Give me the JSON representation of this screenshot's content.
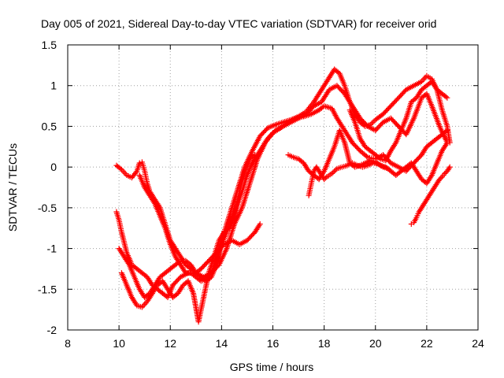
{
  "chart_data": {
    "type": "scatter",
    "title": "Day 005 of 2021, Sidereal Day-to-day VTEC variation (SDTVAR) for receiver orid",
    "xlabel": "GPS time / hours",
    "ylabel": "SDTVAR / TECUs",
    "xlim": [
      8,
      24
    ],
    "ylim": [
      -2,
      1.5
    ],
    "xticks": [
      "8",
      "10",
      "12",
      "14",
      "16",
      "18",
      "20",
      "22",
      "24"
    ],
    "yticks": [
      "1.5",
      "1",
      "0.5",
      "0",
      "-0.5",
      "-1",
      "-1.5",
      "-2"
    ],
    "grid": true,
    "marker": "plus",
    "color": "#ff0000",
    "series": [
      {
        "x": [
          9.9,
          10.1,
          10.3,
          10.5,
          10.7,
          10.8,
          10.9,
          11.0,
          11.1,
          11.2,
          11.4,
          11.6,
          11.8,
          12.0,
          12.2,
          12.4,
          12.6,
          12.8,
          13.0,
          13.2,
          13.4,
          13.6,
          13.8,
          14.0,
          14.3,
          14.6,
          14.9,
          15.2,
          15.5,
          15.8,
          16.1,
          16.4,
          16.7,
          17.0,
          17.3,
          17.6,
          17.9,
          18.2,
          18.4,
          18.6,
          18.8,
          19.0,
          19.2,
          19.4,
          19.6,
          19.8,
          20.0,
          20.3,
          20.6,
          20.9,
          21.2,
          21.5,
          21.8,
          22.0,
          22.2,
          22.4,
          22.6,
          22.8
        ],
        "y": [
          0.02,
          -0.03,
          -0.1,
          -0.13,
          -0.05,
          0.05,
          0.06,
          -0.05,
          -0.2,
          -0.3,
          -0.4,
          -0.5,
          -0.7,
          -0.9,
          -1.0,
          -1.1,
          -1.2,
          -1.25,
          -1.3,
          -1.35,
          -1.4,
          -1.35,
          -1.2,
          -0.9,
          -0.6,
          -0.3,
          0.0,
          0.2,
          0.38,
          0.48,
          0.52,
          0.55,
          0.58,
          0.62,
          0.68,
          0.8,
          0.95,
          1.1,
          1.2,
          1.15,
          1.0,
          0.8,
          0.65,
          0.55,
          0.5,
          0.52,
          0.58,
          0.65,
          0.75,
          0.85,
          0.95,
          1.0,
          1.05,
          1.12,
          1.08,
          0.95,
          0.9,
          0.85
        ]
      },
      {
        "x": [
          9.9,
          10.0,
          10.1,
          10.3,
          10.5,
          10.7,
          10.9,
          11.1,
          11.3,
          11.5,
          11.7,
          11.9,
          12.1,
          12.4,
          12.7,
          13.0,
          13.3,
          13.6,
          13.9,
          14.2,
          14.5,
          14.8,
          15.1,
          15.4,
          15.7,
          16.0,
          16.3,
          16.6,
          16.9,
          17.2,
          17.5,
          17.8,
          18.0,
          18.3,
          18.5,
          18.8,
          19.1,
          19.4,
          19.7,
          20.0,
          20.3,
          20.6,
          20.9,
          21.2,
          21.5,
          21.8,
          22.0,
          22.2,
          22.4,
          22.6,
          22.8
        ],
        "y": [
          -0.55,
          -0.65,
          -0.8,
          -1.05,
          -1.2,
          -1.25,
          -1.3,
          -1.35,
          -1.45,
          -1.5,
          -1.55,
          -1.6,
          -1.45,
          -1.35,
          -1.3,
          -1.3,
          -1.35,
          -1.3,
          -1.2,
          -1.0,
          -0.7,
          -0.5,
          -0.2,
          0.1,
          0.3,
          0.42,
          0.48,
          0.55,
          0.6,
          0.62,
          0.65,
          0.7,
          0.75,
          0.72,
          0.6,
          0.45,
          0.3,
          0.2,
          0.12,
          0.1,
          0.15,
          0.05,
          0.0,
          -0.05,
          0.05,
          0.15,
          0.25,
          0.3,
          0.35,
          0.4,
          0.45
        ]
      },
      {
        "x": [
          10.0,
          10.2,
          10.4,
          10.6,
          10.8,
          11.0,
          11.2,
          11.4,
          11.6,
          11.8,
          12.0,
          12.2,
          12.4,
          12.6,
          12.8,
          13.0,
          13.2,
          13.5,
          13.8,
          14.1,
          14.4,
          14.7,
          15.0,
          15.3,
          15.5
        ],
        "y": [
          -1.0,
          -1.1,
          -1.2,
          -1.35,
          -1.5,
          -1.6,
          -1.55,
          -1.45,
          -1.35,
          -1.3,
          -1.25,
          -1.2,
          -1.15,
          -1.15,
          -1.2,
          -1.3,
          -1.25,
          -1.15,
          -1.05,
          -0.95,
          -0.9,
          -0.95,
          -0.9,
          -0.8,
          -0.7
        ]
      },
      {
        "x": [
          10.1,
          10.3,
          10.5,
          10.7,
          10.9,
          11.1,
          11.3,
          11.5,
          11.7,
          11.9,
          12.1,
          12.3,
          12.5,
          12.7,
          12.9,
          13.1,
          13.3,
          13.5,
          13.7,
          13.9,
          14.1,
          14.3,
          14.5,
          14.7,
          14.9,
          15.1,
          15.3
        ],
        "y": [
          -1.3,
          -1.45,
          -1.6,
          -1.7,
          -1.72,
          -1.65,
          -1.55,
          -1.45,
          -1.4,
          -1.5,
          -1.6,
          -1.55,
          -1.45,
          -1.4,
          -1.55,
          -1.9,
          -1.6,
          -1.3,
          -1.1,
          -0.9,
          -0.8,
          -0.75,
          -0.6,
          -0.3,
          -0.05,
          0.1,
          0.15
        ]
      },
      {
        "x": [
          10.8,
          11.0,
          11.2,
          11.4,
          11.6,
          11.8,
          12.0,
          12.2,
          12.4,
          12.6,
          12.8,
          13.0,
          13.2,
          13.4,
          13.6,
          13.8,
          14.0,
          14.2,
          14.5,
          14.8,
          15.0,
          15.2,
          15.5,
          15.8,
          16.1,
          16.4,
          16.7,
          17.0,
          17.3,
          17.6,
          17.9,
          18.2,
          18.5,
          18.8,
          19.1,
          19.4,
          19.7,
          20.0,
          20.3,
          20.6,
          20.9,
          21.2,
          21.5,
          21.8,
          22.0,
          22.2,
          22.5,
          22.8
        ],
        "y": [
          -0.1,
          -0.25,
          -0.35,
          -0.45,
          -0.6,
          -0.75,
          -0.95,
          -1.1,
          -1.2,
          -1.3,
          -1.3,
          -1.35,
          -1.4,
          -1.38,
          -1.3,
          -1.15,
          -0.95,
          -0.8,
          -0.55,
          -0.3,
          -0.1,
          0.05,
          0.2,
          0.35,
          0.45,
          0.5,
          0.55,
          0.6,
          0.65,
          0.75,
          0.8,
          0.95,
          1.0,
          0.9,
          0.75,
          0.6,
          0.5,
          0.45,
          0.55,
          0.6,
          0.5,
          0.4,
          0.6,
          0.85,
          0.9,
          0.75,
          0.5,
          0.3
        ]
      },
      {
        "x": [
          16.6,
          16.8,
          17.0,
          17.2,
          17.4,
          17.6,
          17.8,
          18.0,
          18.2,
          18.4,
          18.6,
          18.8,
          19.0,
          19.2,
          19.4,
          19.6,
          19.8,
          20.0,
          20.2,
          20.4,
          20.6,
          20.8,
          21.0,
          21.2,
          21.4,
          21.6,
          21.8,
          22.0,
          22.2,
          22.4,
          22.6,
          22.8
        ],
        "y": [
          0.15,
          0.12,
          0.1,
          0.05,
          -0.05,
          -0.1,
          -0.15,
          -0.05,
          0.1,
          0.25,
          0.45,
          0.3,
          0.05,
          0.0,
          0.02,
          0.05,
          0.08,
          0.06,
          0.02,
          0.0,
          -0.05,
          -0.1,
          -0.05,
          0.0,
          0.05,
          -0.05,
          -0.15,
          -0.2,
          -0.1,
          0.05,
          0.2,
          0.3
        ]
      },
      {
        "x": [
          17.4,
          17.5,
          17.6,
          17.7,
          17.8,
          17.9,
          18.0,
          18.1,
          18.3,
          18.5,
          18.7,
          18.9,
          19.1,
          19.3,
          19.5,
          19.7,
          19.9,
          20.1,
          20.3,
          20.5
        ],
        "y": [
          -0.35,
          -0.2,
          -0.05,
          0.0,
          -0.05,
          -0.1,
          -0.15,
          -0.12,
          -0.08,
          -0.02,
          0.0,
          0.02,
          0.05,
          0.02,
          0.0,
          0.02,
          0.05,
          0.04,
          0.0,
          -0.02
        ]
      },
      {
        "x": [
          21.4,
          21.5,
          21.6,
          21.7,
          21.8,
          21.9,
          22.0,
          22.1,
          22.2,
          22.3,
          22.4,
          22.5,
          22.6,
          22.7,
          22.8,
          22.9
        ],
        "y": [
          -0.7,
          -0.68,
          -0.62,
          -0.55,
          -0.5,
          -0.45,
          -0.4,
          -0.35,
          -0.3,
          -0.25,
          -0.2,
          -0.15,
          -0.12,
          -0.08,
          -0.05,
          0.0
        ]
      },
      {
        "x": [
          19.0,
          19.2,
          19.4,
          19.6,
          19.8,
          20.0,
          20.2,
          20.4,
          20.6,
          20.8,
          21.0,
          21.2,
          21.4,
          21.6,
          21.8,
          22.0,
          22.2,
          22.4,
          22.6,
          22.8,
          22.9
        ],
        "y": [
          0.7,
          0.55,
          0.35,
          0.25,
          0.2,
          0.15,
          0.1,
          0.08,
          0.2,
          0.3,
          0.45,
          0.6,
          0.8,
          0.85,
          0.95,
          1.0,
          1.05,
          0.95,
          0.7,
          0.5,
          0.3
        ]
      }
    ]
  }
}
